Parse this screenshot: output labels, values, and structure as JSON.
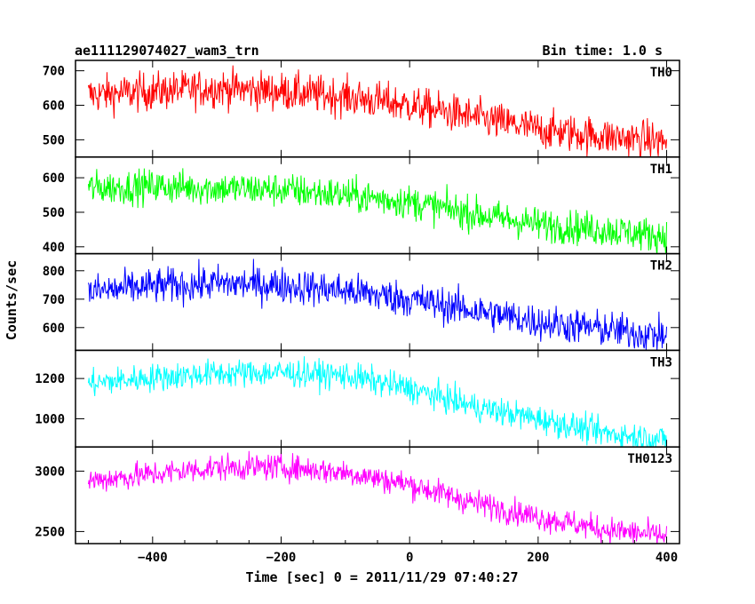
{
  "title_left": "ae111129074027_wam3_trn",
  "title_right": "Bin time: 1.0 s",
  "ylabel": "Counts/sec",
  "xlabel": "Time [sec] 0 = 2011/11/29 07:40:27",
  "chart_data": {
    "type": "line",
    "x_range": [
      -520,
      420
    ],
    "x_ticks": [
      -400,
      -200,
      0,
      200,
      400
    ],
    "x_tick_labels": [
      "−400",
      "−200",
      "0",
      "200",
      "400"
    ],
    "bin_time_s": 1.0,
    "panels": [
      {
        "name": "TH0",
        "color": "#ff0000",
        "ylim": [
          450,
          730
        ],
        "y_ticks": [
          500,
          600,
          700
        ],
        "y_tick_labels": [
          "500",
          "600",
          "700"
        ],
        "noise": 28,
        "trend": [
          [
            -500,
            630
          ],
          [
            -400,
            640
          ],
          [
            -300,
            650
          ],
          [
            -200,
            640
          ],
          [
            -100,
            625
          ],
          [
            0,
            600
          ],
          [
            100,
            565
          ],
          [
            200,
            530
          ],
          [
            300,
            510
          ],
          [
            400,
            495
          ]
        ]
      },
      {
        "name": "TH1",
        "color": "#00ff00",
        "ylim": [
          380,
          660
        ],
        "y_ticks": [
          400,
          500,
          600
        ],
        "y_tick_labels": [
          "400",
          "500",
          "600"
        ],
        "noise": 25,
        "trend": [
          [
            -500,
            570
          ],
          [
            -400,
            575
          ],
          [
            -300,
            570
          ],
          [
            -200,
            565
          ],
          [
            -100,
            550
          ],
          [
            0,
            530
          ],
          [
            100,
            495
          ],
          [
            200,
            465
          ],
          [
            300,
            450
          ],
          [
            400,
            430
          ]
        ]
      },
      {
        "name": "TH2",
        "color": "#0000ff",
        "ylim": [
          520,
          860
        ],
        "y_ticks": [
          600,
          700,
          800
        ],
        "y_tick_labels": [
          "600",
          "700",
          "800"
        ],
        "noise": 32,
        "trend": [
          [
            -500,
            725
          ],
          [
            -400,
            745
          ],
          [
            -300,
            755
          ],
          [
            -200,
            750
          ],
          [
            -100,
            730
          ],
          [
            0,
            700
          ],
          [
            100,
            660
          ],
          [
            200,
            620
          ],
          [
            300,
            595
          ],
          [
            400,
            570
          ]
        ]
      },
      {
        "name": "TH3",
        "color": "#00ffff",
        "ylim": [
          860,
          1340
        ],
        "y_ticks": [
          1000,
          1200
        ],
        "y_tick_labels": [
          "1000",
          "1200"
        ],
        "noise": 35,
        "trend": [
          [
            -500,
            1175
          ],
          [
            -400,
            1205
          ],
          [
            -300,
            1225
          ],
          [
            -200,
            1230
          ],
          [
            -100,
            1215
          ],
          [
            0,
            1150
          ],
          [
            100,
            1060
          ],
          [
            200,
            1000
          ],
          [
            300,
            930
          ],
          [
            400,
            895
          ]
        ]
      },
      {
        "name": "TH0123",
        "color": "#ff00ff",
        "ylim": [
          2400,
          3200
        ],
        "y_ticks": [
          2500,
          3000
        ],
        "y_tick_labels": [
          "2500",
          "3000"
        ],
        "noise": 55,
        "trend": [
          [
            -500,
            2920
          ],
          [
            -400,
            2975
          ],
          [
            -300,
            3030
          ],
          [
            -200,
            3035
          ],
          [
            -100,
            2990
          ],
          [
            0,
            2890
          ],
          [
            100,
            2740
          ],
          [
            200,
            2620
          ],
          [
            300,
            2520
          ],
          [
            400,
            2460
          ]
        ]
      }
    ]
  }
}
